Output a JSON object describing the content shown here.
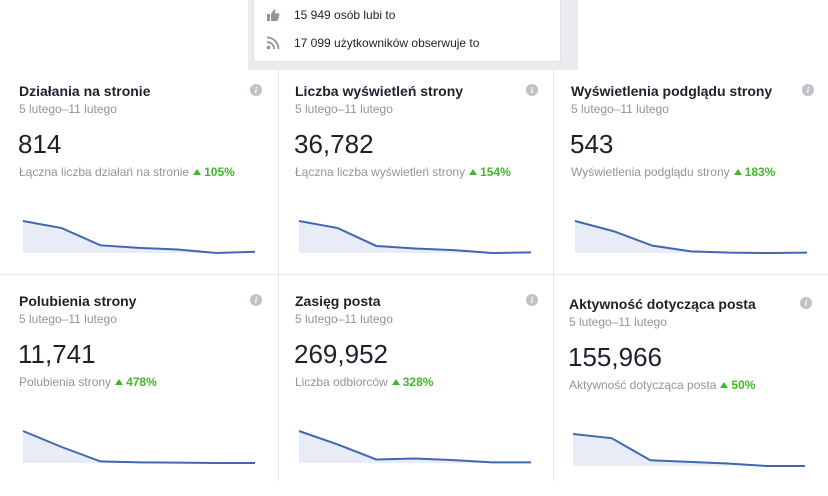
{
  "top_card": {
    "likes_text": "15 949 osób lubi to",
    "likes_icon": "thumbs-up-icon",
    "followers_text": "17 099 użytkowników obserwuje to",
    "followers_icon": "rss-feed-icon"
  },
  "info_icon_glyph": "i",
  "colors": {
    "line": "#4267b2",
    "fill": "#e7ecf7",
    "positive": "#42b72a",
    "muted": "#90949c"
  },
  "cards": [
    {
      "title": "Działania na stronie",
      "date": "5 lutego–11 lutego",
      "value": "814",
      "desc": "Łączna liczba działań na stronie",
      "delta": "105%",
      "trend": [
        1.0,
        0.78,
        0.24,
        0.16,
        0.11,
        0.0,
        0.04
      ]
    },
    {
      "title": "Liczba wyświetleń strony",
      "date": "5 lutego–11 lutego",
      "value": "36,782",
      "desc": "Łączna liczba wyświetleń strony",
      "delta": "154%",
      "trend": [
        1.0,
        0.78,
        0.22,
        0.14,
        0.09,
        0.0,
        0.02
      ]
    },
    {
      "title": "Wyświetlenia podglądu strony",
      "date": "5 lutego–11 lutego",
      "value": "543",
      "desc": "Wyświetlenia podglądu strony",
      "delta": "183%",
      "trend": [
        1.0,
        0.68,
        0.23,
        0.05,
        0.01,
        0.0,
        0.01
      ]
    },
    {
      "title": "Polubienia strony",
      "date": "5 lutego–11 lutego",
      "value": "11,741",
      "desc": "Polubienia strony",
      "delta": "478%",
      "trend": [
        1.0,
        0.5,
        0.05,
        0.02,
        0.01,
        0.0,
        0.0
      ]
    },
    {
      "title": "Zasięg posta",
      "date": "5 lutego–11 lutego",
      "value": "269,952",
      "desc": "Liczba odbiorców",
      "delta": "328%",
      "trend": [
        1.0,
        0.58,
        0.11,
        0.14,
        0.09,
        0.02,
        0.02
      ]
    },
    {
      "title": "Aktywność dotycząca posta",
      "date": "5 lutego–11 lutego",
      "value": "155,966",
      "desc": "Aktywność dotycząca posta",
      "delta": "50%",
      "trend": [
        1.0,
        0.87,
        0.18,
        0.13,
        0.08,
        0.0,
        0.0
      ]
    }
  ]
}
